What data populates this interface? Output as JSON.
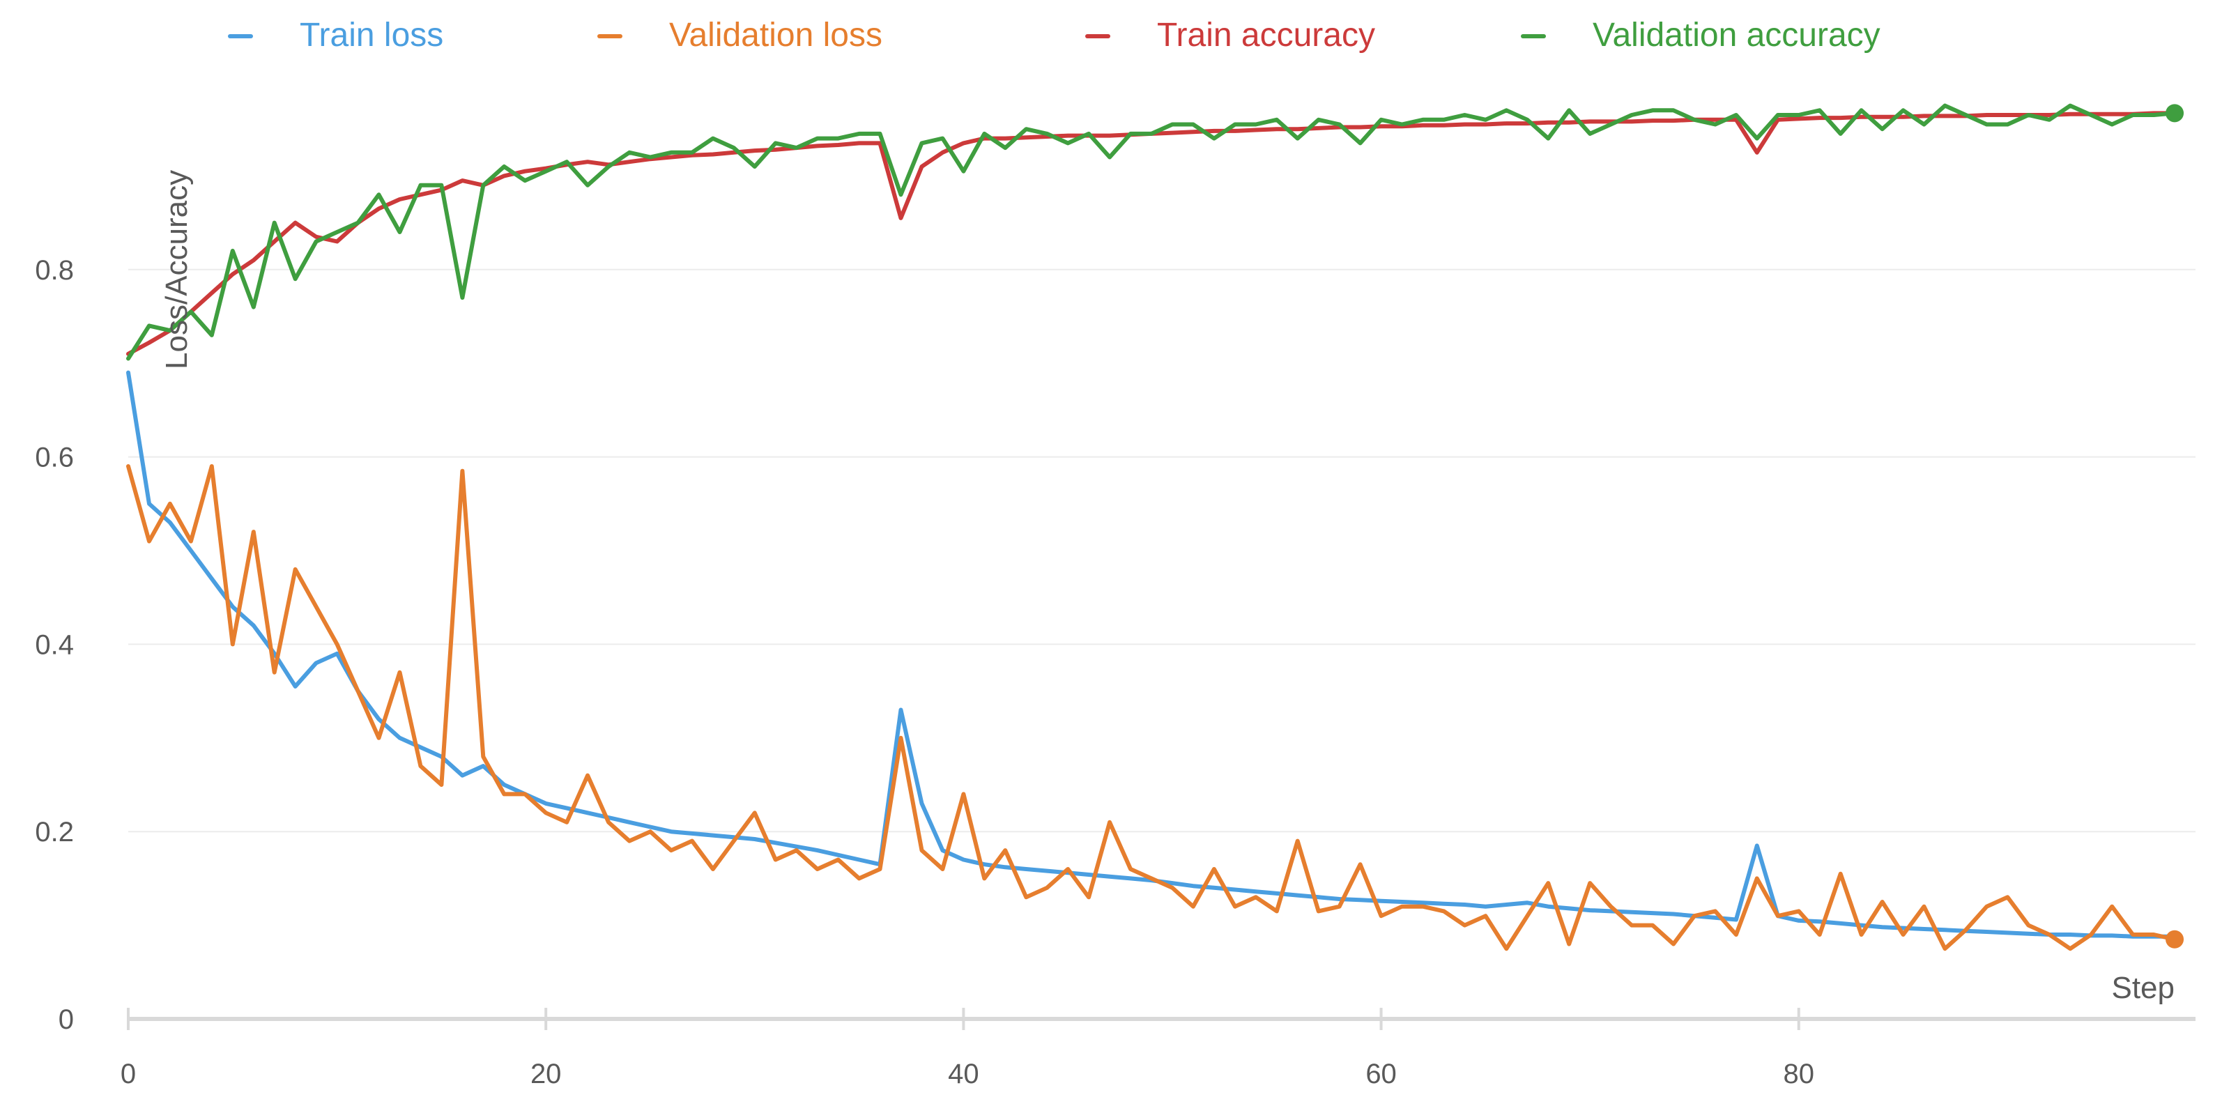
{
  "chart_data": {
    "type": "line",
    "xlabel": "Step",
    "ylabel": "Loss/Accuracy",
    "xlim": [
      0,
      99
    ],
    "ylim": [
      0,
      1
    ],
    "x_ticks": [
      "0",
      "20",
      "40",
      "60",
      "80"
    ],
    "y_ticks": [
      "0",
      "0.2",
      "0.4",
      "0.6",
      "0.8"
    ],
    "x_tick_values": [
      0,
      20,
      40,
      60,
      80
    ],
    "y_tick_values": [
      0,
      0.2,
      0.4,
      0.6,
      0.8
    ],
    "grid": true,
    "legend_position": "top",
    "series": [
      {
        "name": "Train loss",
        "color": "#4a9ee0",
        "values": [
          0.69,
          0.55,
          0.53,
          0.5,
          0.47,
          0.44,
          0.42,
          0.39,
          0.355,
          0.38,
          0.39,
          0.35,
          0.32,
          0.3,
          0.29,
          0.28,
          0.26,
          0.27,
          0.25,
          0.24,
          0.23,
          0.225,
          0.22,
          0.215,
          0.21,
          0.205,
          0.2,
          0.198,
          0.196,
          0.194,
          0.192,
          0.188,
          0.184,
          0.18,
          0.175,
          0.17,
          0.165,
          0.33,
          0.23,
          0.18,
          0.17,
          0.165,
          0.162,
          0.16,
          0.158,
          0.156,
          0.154,
          0.152,
          0.15,
          0.148,
          0.145,
          0.142,
          0.14,
          0.138,
          0.136,
          0.134,
          0.132,
          0.13,
          0.128,
          0.127,
          0.126,
          0.125,
          0.124,
          0.123,
          0.122,
          0.12,
          0.122,
          0.124,
          0.12,
          0.118,
          0.116,
          0.115,
          0.114,
          0.113,
          0.112,
          0.11,
          0.108,
          0.106,
          0.185,
          0.11,
          0.105,
          0.104,
          0.102,
          0.1,
          0.098,
          0.097,
          0.096,
          0.095,
          0.094,
          0.093,
          0.092,
          0.091,
          0.09,
          0.09,
          0.089,
          0.089,
          0.088,
          0.088,
          0.088
        ]
      },
      {
        "name": "Validation loss",
        "color": "#e67e2e",
        "values": [
          0.59,
          0.51,
          0.55,
          0.51,
          0.59,
          0.4,
          0.52,
          0.37,
          0.48,
          0.44,
          0.4,
          0.35,
          0.3,
          0.37,
          0.27,
          0.25,
          0.585,
          0.28,
          0.24,
          0.24,
          0.22,
          0.21,
          0.26,
          0.21,
          0.19,
          0.2,
          0.18,
          0.19,
          0.16,
          0.19,
          0.22,
          0.17,
          0.18,
          0.16,
          0.17,
          0.15,
          0.16,
          0.3,
          0.18,
          0.16,
          0.24,
          0.15,
          0.18,
          0.13,
          0.14,
          0.16,
          0.13,
          0.21,
          0.16,
          0.15,
          0.14,
          0.12,
          0.16,
          0.12,
          0.13,
          0.115,
          0.19,
          0.115,
          0.12,
          0.165,
          0.11,
          0.12,
          0.12,
          0.115,
          0.1,
          0.11,
          0.075,
          0.11,
          0.145,
          0.08,
          0.145,
          0.12,
          0.1,
          0.1,
          0.08,
          0.11,
          0.115,
          0.09,
          0.15,
          0.11,
          0.115,
          0.09,
          0.155,
          0.09,
          0.125,
          0.09,
          0.12,
          0.075,
          0.095,
          0.12,
          0.13,
          0.1,
          0.09,
          0.075,
          0.09,
          0.12,
          0.09,
          0.09,
          0.085
        ]
      },
      {
        "name": "Train accuracy",
        "color": "#cc3a3a",
        "values": [
          0.71,
          0.722,
          0.735,
          0.755,
          0.775,
          0.795,
          0.81,
          0.83,
          0.85,
          0.835,
          0.83,
          0.85,
          0.865,
          0.875,
          0.88,
          0.885,
          0.895,
          0.89,
          0.9,
          0.905,
          0.908,
          0.912,
          0.915,
          0.912,
          0.915,
          0.918,
          0.92,
          0.922,
          0.923,
          0.925,
          0.927,
          0.928,
          0.93,
          0.932,
          0.933,
          0.935,
          0.935,
          0.855,
          0.91,
          0.925,
          0.935,
          0.94,
          0.94,
          0.941,
          0.942,
          0.943,
          0.943,
          0.943,
          0.944,
          0.945,
          0.946,
          0.947,
          0.948,
          0.948,
          0.949,
          0.95,
          0.95,
          0.951,
          0.952,
          0.952,
          0.953,
          0.953,
          0.954,
          0.954,
          0.955,
          0.955,
          0.956,
          0.956,
          0.957,
          0.957,
          0.958,
          0.958,
          0.958,
          0.959,
          0.959,
          0.96,
          0.96,
          0.96,
          0.925,
          0.96,
          0.961,
          0.962,
          0.962,
          0.963,
          0.963,
          0.963,
          0.964,
          0.964,
          0.964,
          0.965,
          0.965,
          0.965,
          0.965,
          0.966,
          0.966,
          0.966,
          0.966,
          0.967,
          0.967
        ]
      },
      {
        "name": "Validation accuracy",
        "color": "#3f9e3f",
        "values": [
          0.705,
          0.74,
          0.735,
          0.755,
          0.73,
          0.82,
          0.76,
          0.85,
          0.79,
          0.83,
          0.84,
          0.85,
          0.88,
          0.84,
          0.89,
          0.89,
          0.77,
          0.89,
          0.91,
          0.895,
          0.905,
          0.915,
          0.89,
          0.91,
          0.925,
          0.92,
          0.925,
          0.925,
          0.94,
          0.93,
          0.91,
          0.935,
          0.93,
          0.94,
          0.94,
          0.945,
          0.945,
          0.88,
          0.935,
          0.94,
          0.905,
          0.945,
          0.93,
          0.95,
          0.945,
          0.935,
          0.945,
          0.92,
          0.945,
          0.945,
          0.955,
          0.955,
          0.94,
          0.955,
          0.955,
          0.96,
          0.94,
          0.96,
          0.955,
          0.935,
          0.96,
          0.955,
          0.96,
          0.96,
          0.965,
          0.96,
          0.97,
          0.96,
          0.94,
          0.97,
          0.945,
          0.955,
          0.965,
          0.97,
          0.97,
          0.96,
          0.955,
          0.965,
          0.94,
          0.965,
          0.965,
          0.97,
          0.945,
          0.97,
          0.95,
          0.97,
          0.955,
          0.975,
          0.965,
          0.955,
          0.955,
          0.965,
          0.96,
          0.975,
          0.965,
          0.955,
          0.965,
          0.965,
          0.967
        ]
      }
    ]
  }
}
